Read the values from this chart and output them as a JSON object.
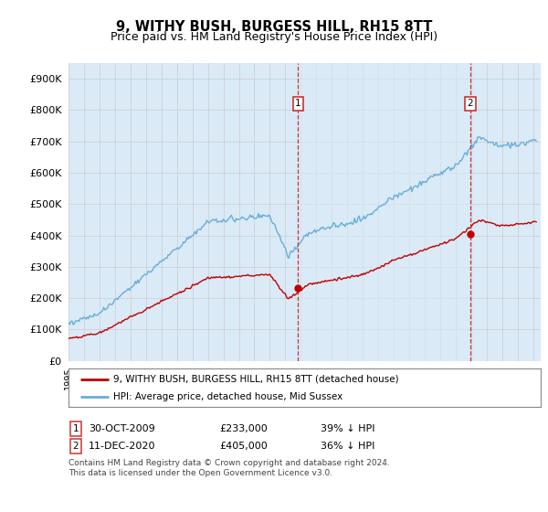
{
  "title": "9, WITHY BUSH, BURGESS HILL, RH15 8TT",
  "subtitle": "Price paid vs. HM Land Registry's House Price Index (HPI)",
  "ylim": [
    0,
    950000
  ],
  "yticks": [
    0,
    100000,
    200000,
    300000,
    400000,
    500000,
    600000,
    700000,
    800000,
    900000
  ],
  "ytick_labels": [
    "£0",
    "£100K",
    "£200K",
    "£300K",
    "£400K",
    "£500K",
    "£600K",
    "£700K",
    "£800K",
    "£900K"
  ],
  "hpi_color": "#6aaed6",
  "hpi_fill_color": "#daeaf7",
  "price_color": "#c00000",
  "vline_color": "#cc3333",
  "marker1_date": 2009.83,
  "marker1_price": 233000,
  "marker1_label": "30-OCT-2009",
  "marker1_amount": "£233,000",
  "marker1_pct": "39% ↓ HPI",
  "marker2_date": 2020.95,
  "marker2_price": 405000,
  "marker2_label": "11-DEC-2020",
  "marker2_amount": "£405,000",
  "marker2_pct": "36% ↓ HPI",
  "legend_line1": "9, WITHY BUSH, BURGESS HILL, RH15 8TT (detached house)",
  "legend_line2": "HPI: Average price, detached house, Mid Sussex",
  "footnote1": "Contains HM Land Registry data © Crown copyright and database right 2024.",
  "footnote2": "This data is licensed under the Open Government Licence v3.0.",
  "background_color": "#daeaf7",
  "plot_bg": "#ffffff",
  "grid_color": "#cccccc"
}
